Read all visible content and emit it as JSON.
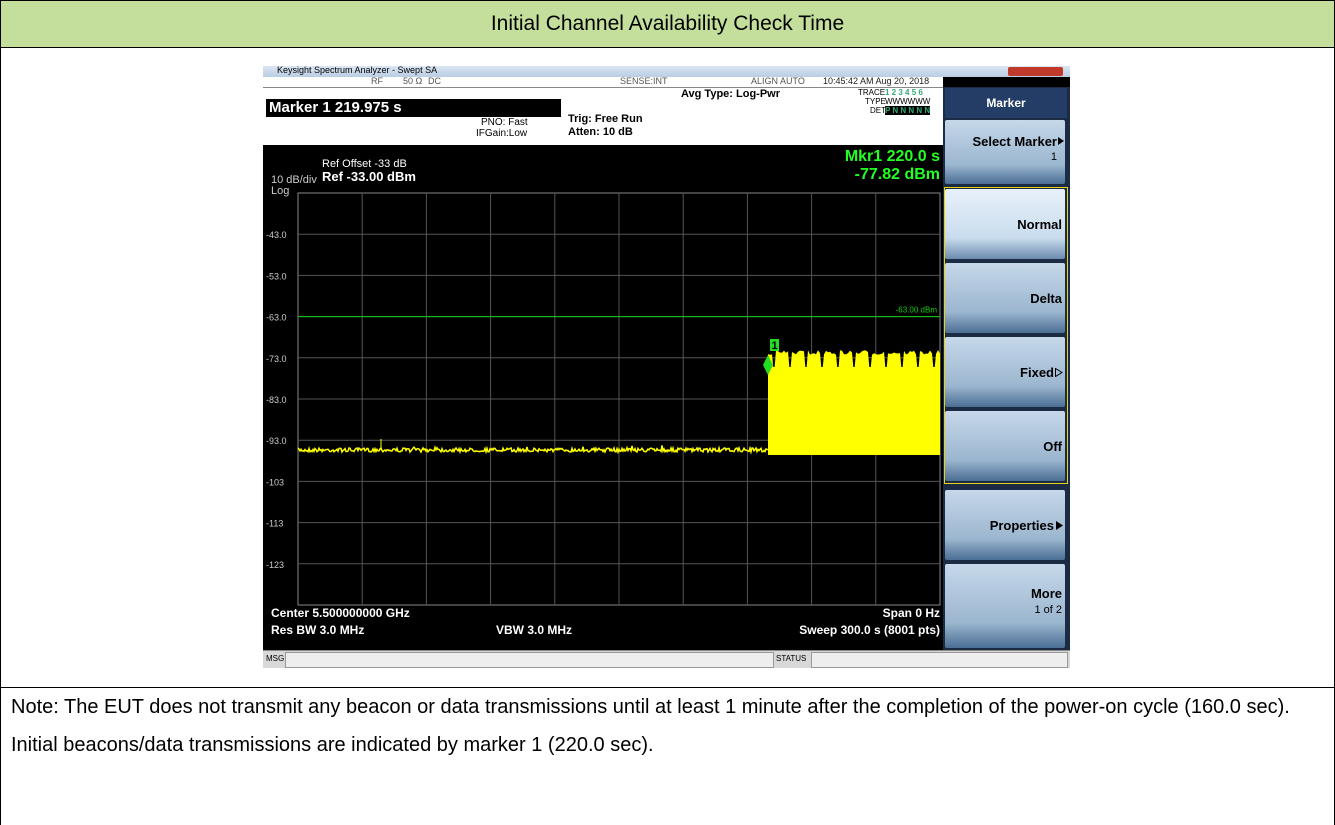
{
  "header": {
    "title": "Initial Channel Availability Check Time"
  },
  "analyzer": {
    "window_title": "Keysight Spectrum Analyzer - Swept SA",
    "status": [
      "RF",
      "50 Ω",
      "DC",
      "SENSE:INT",
      "ALIGN AUTO",
      "10:45:42 AM Aug 20, 2018"
    ],
    "marker_readout": "Marker 1 219.975 s",
    "pno": "PNO: Fast",
    "ifgain": "IFGain:Low",
    "trig": "Trig: Free Run",
    "atten": "Atten: 10 dB",
    "avg_type": "Avg Type: Log-Pwr",
    "trace_labels": [
      "TRACE",
      "TYPE",
      "DET"
    ],
    "trace_values": [
      "1 2 3 4 5 6",
      "WWWWWW",
      "P N N N N N"
    ],
    "ref_offset": "Ref Offset -33 dB",
    "scale": "10 dB/div",
    "ref_level": "Ref -33.00 dBm",
    "log": "Log",
    "mkr_time": "Mkr1 220.0 s",
    "mkr_level": "-77.82 dBm",
    "y_labels": [
      "-43.0",
      "-53.0",
      "-63.0",
      "-73.0",
      "-83.0",
      "-93.0",
      "-103",
      "-113",
      "-123"
    ],
    "line_label": "-63.00 dBm",
    "marker_number": "1",
    "center": "Center 5.500000000 GHz",
    "span": "Span 0 Hz",
    "res_bw": "Res BW 3.0 MHz",
    "vbw": "VBW 3.0 MHz",
    "sweep": "Sweep  300.0 s (8001 pts)",
    "msg": "MSG",
    "status_label": "STATUS",
    "softkey_header": "Marker",
    "select_marker": "Select Marker",
    "select_value": "1",
    "softkeys": [
      "Normal",
      "Delta",
      "Fixed",
      "Off"
    ],
    "properties": "Properties",
    "more": "More",
    "more_page": "1 of 2"
  },
  "note": "Note: The EUT does not transmit any beacon or data transmissions until at least 1 minute after the completion of the power-on cycle (160.0 sec). Initial beacons/data transmissions are indicated by marker 1 (220.0 sec)."
}
